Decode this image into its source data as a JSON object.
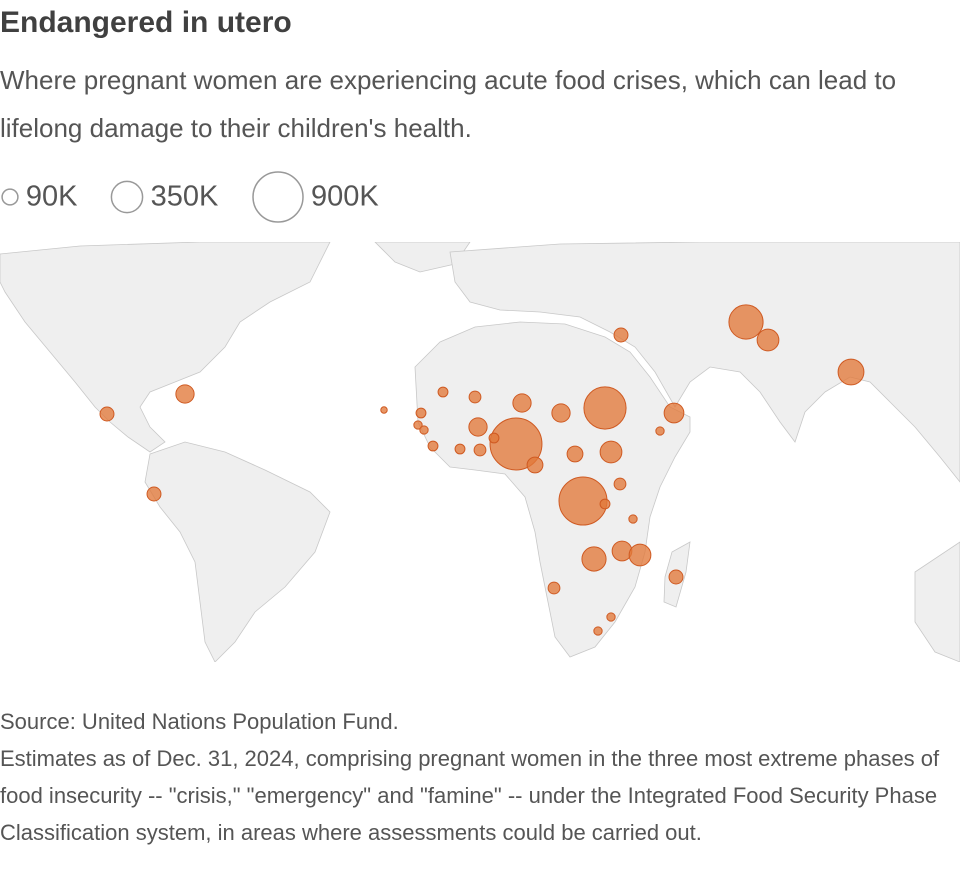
{
  "chart_data": {
    "type": "bubble-map",
    "title": "Endangered in utero",
    "subtitle": "Where pregnant women are experiencing acute food crises, which can lead to lifelong damage to their children's health.",
    "size_legend": [
      {
        "value": 90000,
        "label": "90K"
      },
      {
        "value": 350000,
        "label": "350K"
      },
      {
        "value": 900000,
        "label": "900K"
      }
    ],
    "color": "#e2793a",
    "values": [
      420000,
      170000,
      240000,
      120000,
      70000,
      70000,
      70000,
      640000,
      140000,
      25000,
      970000,
      120000,
      120000,
      50000,
      35000,
      15000,
      35000,
      25000,
      25000,
      120000,
      35000,
      35000,
      50000,
      35000,
      90000,
      90000,
      170000,
      50000,
      830000,
      35000,
      25000,
      210000,
      140000,
      170000,
      70000,
      50000,
      25000,
      25000
    ],
    "source": "Source: United Nations Population Fund.",
    "note": "Estimates as of Dec. 31, 2024, comprising pregnant women in the three most extreme phases of food insecurity -- \"crisis,\" \"emergency\" and \"famine\" -- under the Integrated Food Security Phase Classification system, in areas where assessments could be carried out."
  }
}
